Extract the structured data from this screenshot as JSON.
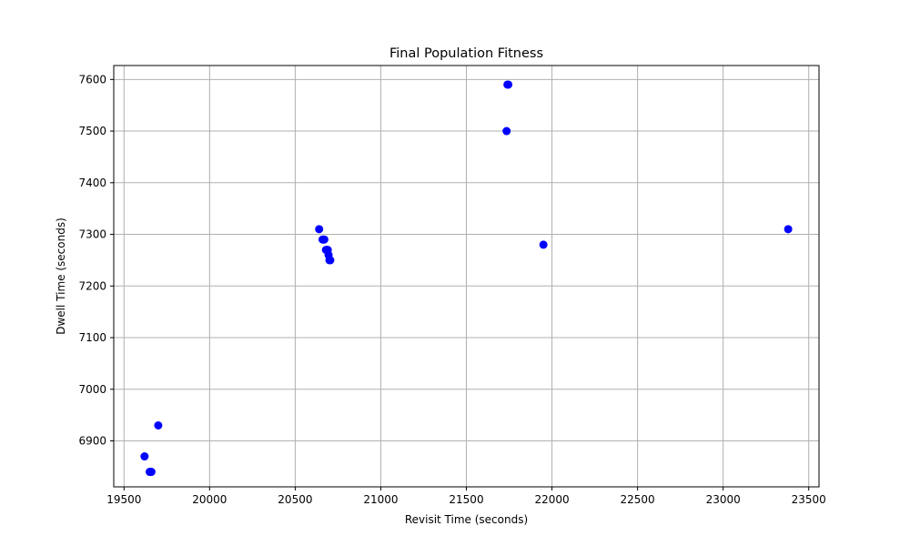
{
  "chart_data": {
    "type": "scatter",
    "title": "Final Population Fitness",
    "xlabel": "Revisit Time (seconds)",
    "ylabel": "Dwell Time (seconds)",
    "xlim": [
      19440,
      23560
    ],
    "ylim": [
      6811,
      7627
    ],
    "xticks": [
      19500,
      20000,
      20500,
      21000,
      21500,
      22000,
      22500,
      23000,
      23500
    ],
    "yticks": [
      6900,
      7000,
      7100,
      7200,
      7300,
      7400,
      7500,
      7600
    ],
    "grid": true,
    "marker_color": "#0000ff",
    "series": [
      {
        "points": [
          {
            "x": 21740,
            "y": 7590
          },
          {
            "x": 21745,
            "y": 7590
          },
          {
            "x": 21735,
            "y": 7500
          },
          {
            "x": 20640,
            "y": 7310
          },
          {
            "x": 20660,
            "y": 7290
          },
          {
            "x": 20665,
            "y": 7290
          },
          {
            "x": 20670,
            "y": 7290
          },
          {
            "x": 20680,
            "y": 7270
          },
          {
            "x": 20690,
            "y": 7270
          },
          {
            "x": 20685,
            "y": 7270
          },
          {
            "x": 20695,
            "y": 7260
          },
          {
            "x": 20700,
            "y": 7250
          },
          {
            "x": 20705,
            "y": 7250
          },
          {
            "x": 21950,
            "y": 7280
          },
          {
            "x": 23380,
            "y": 7310
          },
          {
            "x": 19700,
            "y": 6930
          },
          {
            "x": 19620,
            "y": 6870
          },
          {
            "x": 19650,
            "y": 6840
          },
          {
            "x": 19655,
            "y": 6840
          },
          {
            "x": 19660,
            "y": 6840
          }
        ]
      }
    ]
  }
}
